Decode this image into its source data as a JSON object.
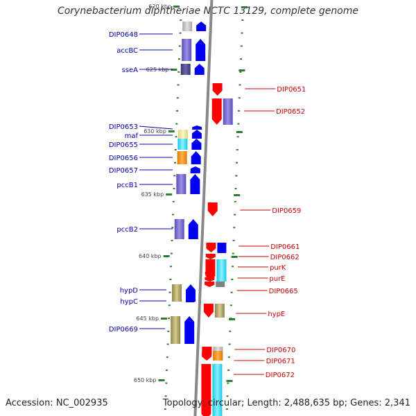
{
  "title": "Corynebacterium diphtheriae NCTC 13129, complete genome",
  "accession": "Accession: NC_002935",
  "topology": "Topology: circular; Length: 2,488,635 bp; Genes: 2,341",
  "scale_labels": [
    "620 kbp",
    "625 kbp",
    "630 kbp",
    "635 kbp",
    "640 kbp",
    "645 kbp",
    "650 kbp"
  ],
  "genes_left": [
    {
      "name": "DIP0648",
      "color": "#c8c8c8",
      "strand": "forward-track"
    },
    {
      "name": "accBC",
      "color": "#7a6fd6",
      "strand": "forward-track"
    },
    {
      "name": "sseA",
      "color": "#4a4a8a",
      "strand": "forward-track"
    },
    {
      "name": "DIP0653",
      "color": "#f2e6a0",
      "strand": "forward-track"
    },
    {
      "name": "maf",
      "color": "#f2e6a0",
      "strand": "forward-track"
    },
    {
      "name": "DIP0655",
      "color": "#22c8c8",
      "strand": "forward-track"
    },
    {
      "name": "DIP0656",
      "color": "#f5961e",
      "strand": "forward-track"
    },
    {
      "name": "DIP0657",
      "color": "#7a6fd6",
      "strand": "forward-track"
    },
    {
      "name": "pccB1",
      "color": "#7a6fd6",
      "strand": "forward-track"
    },
    {
      "name": "pccB2",
      "color": "#7a6fd6",
      "strand": "forward-track"
    },
    {
      "name": "hypD",
      "color": "#b8ae6a",
      "strand": "forward-track"
    },
    {
      "name": "hypC",
      "color": "#b8ae6a",
      "strand": "forward-track"
    },
    {
      "name": "DIP0669",
      "color": "#b8ae6a",
      "strand": "forward-track"
    }
  ],
  "genes_right": [
    {
      "name": "DIP0651",
      "color": "#ff0000",
      "strand": "reverse-track"
    },
    {
      "name": "DIP0652",
      "color": "#7a6fd6",
      "strand": "reverse-track"
    },
    {
      "name": "DIP0659",
      "color": "#ff0000",
      "strand": "reverse-track"
    },
    {
      "name": "DIP0661",
      "color": "#ff0000",
      "strand": "reverse-track"
    },
    {
      "name": "DIP0662",
      "color": "#0000ff",
      "strand": "reverse-track"
    },
    {
      "name": "purK",
      "color": "#22c8ff",
      "strand": "reverse-track"
    },
    {
      "name": "purE",
      "color": "#ff0000",
      "strand": "reverse-track"
    },
    {
      "name": "DIP0665",
      "color": "#808080",
      "strand": "reverse-track"
    },
    {
      "name": "hypE",
      "color": "#b8ae6a",
      "strand": "reverse-track"
    },
    {
      "name": "DIP0670",
      "color": "#c8c8c8",
      "strand": "reverse-track"
    },
    {
      "name": "DIP0671",
      "color": "#f5961e",
      "strand": "reverse-track"
    },
    {
      "name": "DIP0672",
      "color": "#22ddff",
      "strand": "reverse-track"
    }
  ],
  "colors": {
    "left_label": "#0000aa",
    "right_label": "#cc0000",
    "backbone": "#888888",
    "tick": "#2e7d32"
  }
}
